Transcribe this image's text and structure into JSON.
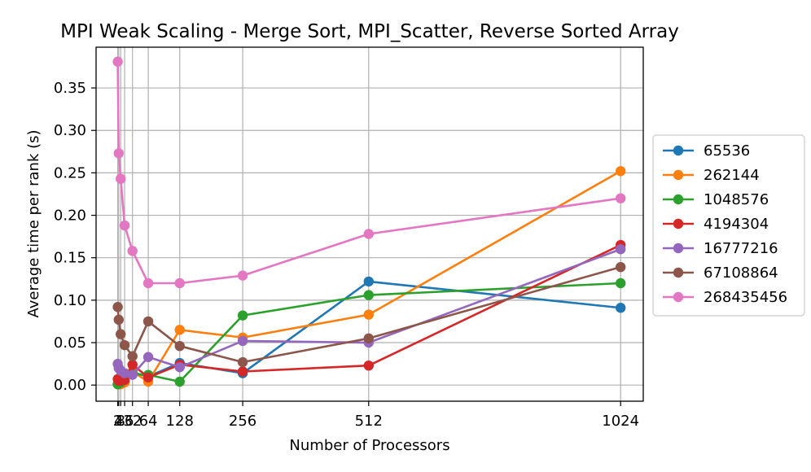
{
  "chart_data": {
    "type": "line",
    "title": "MPI Weak Scaling - Merge Sort, MPI_Scatter, Reverse Sorted Array",
    "xlabel": "Number of Processors",
    "ylabel": "Average time per rank (s)",
    "xlim": [
      -42,
      1070
    ],
    "ylim": [
      -0.019,
      0.398
    ],
    "x_ticks": [
      2,
      4,
      8,
      16,
      32,
      64,
      128,
      256,
      512,
      1024
    ],
    "x_tick_labels": [
      "2",
      "4",
      "8",
      "16",
      "32",
      "64",
      "128",
      "256",
      "512",
      "1024"
    ],
    "y_ticks": [
      0.0,
      0.05,
      0.1,
      0.15,
      0.2,
      0.25,
      0.3,
      0.35
    ],
    "y_tick_labels": [
      "0.00",
      "0.05",
      "0.10",
      "0.15",
      "0.20",
      "0.25",
      "0.30",
      "0.35"
    ],
    "grid": true,
    "legend_position": "outside-right",
    "x": [
      2,
      4,
      8,
      16,
      32,
      64,
      128,
      256,
      512,
      1024
    ],
    "series": [
      {
        "name": "65536",
        "color": "#1f77b4",
        "values": [
          0.001,
          0.001,
          0.002,
          0.004,
          0.015,
          0.01,
          0.026,
          0.014,
          0.122,
          0.091
        ]
      },
      {
        "name": "262144",
        "color": "#ff7f0e",
        "values": [
          0.001,
          0.001,
          0.001,
          0.003,
          0.016,
          0.004,
          0.065,
          0.056,
          0.083,
          0.252
        ]
      },
      {
        "name": "1048576",
        "color": "#2ca02c",
        "values": [
          0.001,
          0.002,
          0.003,
          0.006,
          0.013,
          0.012,
          0.004,
          0.082,
          0.106,
          0.12
        ]
      },
      {
        "name": "4194304",
        "color": "#d62728",
        "values": [
          0.007,
          0.005,
          0.005,
          0.006,
          0.024,
          0.009,
          0.024,
          0.016,
          0.023,
          0.165
        ]
      },
      {
        "name": "16777216",
        "color": "#9467bd",
        "values": [
          0.025,
          0.02,
          0.017,
          0.014,
          0.012,
          0.033,
          0.021,
          0.052,
          0.05,
          0.16
        ]
      },
      {
        "name": "67108864",
        "color": "#8c564b",
        "values": [
          0.092,
          0.077,
          0.06,
          0.047,
          0.034,
          0.075,
          0.046,
          0.027,
          0.055,
          0.139
        ]
      },
      {
        "name": "268435456",
        "color": "#e377c2",
        "values": [
          0.381,
          0.273,
          0.243,
          0.188,
          0.158,
          0.12,
          0.12,
          0.129,
          0.178,
          0.22
        ]
      }
    ]
  }
}
